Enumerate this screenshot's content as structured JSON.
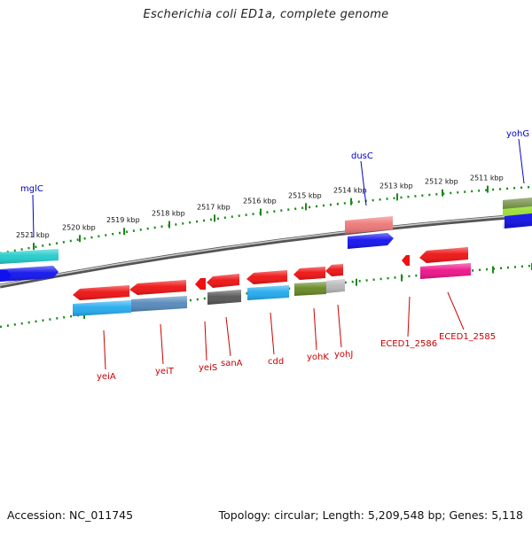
{
  "title": "Escherichia coli ED1a, complete genome",
  "footer": {
    "accession": "Accession: NC_011745",
    "summary": "Topology: circular; Length: 5,209,548 bp; Genes: 5,118"
  },
  "colors": {
    "backbone": "#777777",
    "tick": "#1a8a1a",
    "gene_label_red": "#cc0000",
    "gene_label_blue": "#0000cc",
    "red": "#ee1111",
    "blue": "#1111ee",
    "cyan": "#22cccc",
    "sky": "#22aaee",
    "steel": "#5588bb",
    "grey": "#b8b8b8",
    "darkgrey": "#555555",
    "olive": "#668822",
    "pink": "#ee7777",
    "magenta": "#ee1188",
    "lime": "#99dd33",
    "olivegreen": "#557722"
  },
  "scale_labels": [
    "2521 kbp",
    "2520 kbp",
    "2519 kbp",
    "2518 kbp",
    "2517 kbp",
    "2516 kbp",
    "2515 kbp",
    "2514 kbp",
    "2513 kbp",
    "2512 kbp",
    "2511 kbp"
  ],
  "gene_labels_lower": [
    "yeiA",
    "yeiT",
    "yeiS",
    "sanA",
    "cdd",
    "yohK",
    "yohJ",
    "ECED1_2586",
    "ECED1_2585"
  ],
  "gene_labels_upper": [
    "mglC",
    "dusC",
    "yohG"
  ],
  "features_forward": [
    {
      "name": "mglC",
      "track": "outer",
      "color": "cyan"
    },
    {
      "name": "mglC",
      "track": "inner",
      "color": "blue"
    },
    {
      "name": "dusC",
      "track": "outer",
      "color": "pink"
    },
    {
      "name": "dusC",
      "track": "inner",
      "color": "blue"
    },
    {
      "name": "yohG",
      "track": "outer",
      "color": "olivegreen"
    },
    {
      "name": "yohG",
      "track": "middle",
      "color": "lime"
    },
    {
      "name": "yohG",
      "track": "inner",
      "color": "blue"
    }
  ],
  "features_reverse": [
    {
      "name": "yeiA",
      "color": "red"
    },
    {
      "name": "yeiA",
      "color": "sky"
    },
    {
      "name": "yeiT",
      "color": "red"
    },
    {
      "name": "yeiT",
      "color": "steel"
    },
    {
      "name": "yeiS",
      "color": "red"
    },
    {
      "name": "sanA",
      "color": "red"
    },
    {
      "name": "sanA",
      "color": "darkgrey"
    },
    {
      "name": "cdd",
      "color": "red"
    },
    {
      "name": "cdd",
      "color": "sky"
    },
    {
      "name": "yohK",
      "color": "red"
    },
    {
      "name": "yohK",
      "color": "olive"
    },
    {
      "name": "yohJ",
      "color": "red"
    },
    {
      "name": "yohJ",
      "color": "grey"
    },
    {
      "name": "ECED1_2586",
      "color": "red"
    },
    {
      "name": "ECED1_2585",
      "color": "red"
    },
    {
      "name": "ECED1_2585",
      "color": "magenta"
    }
  ]
}
